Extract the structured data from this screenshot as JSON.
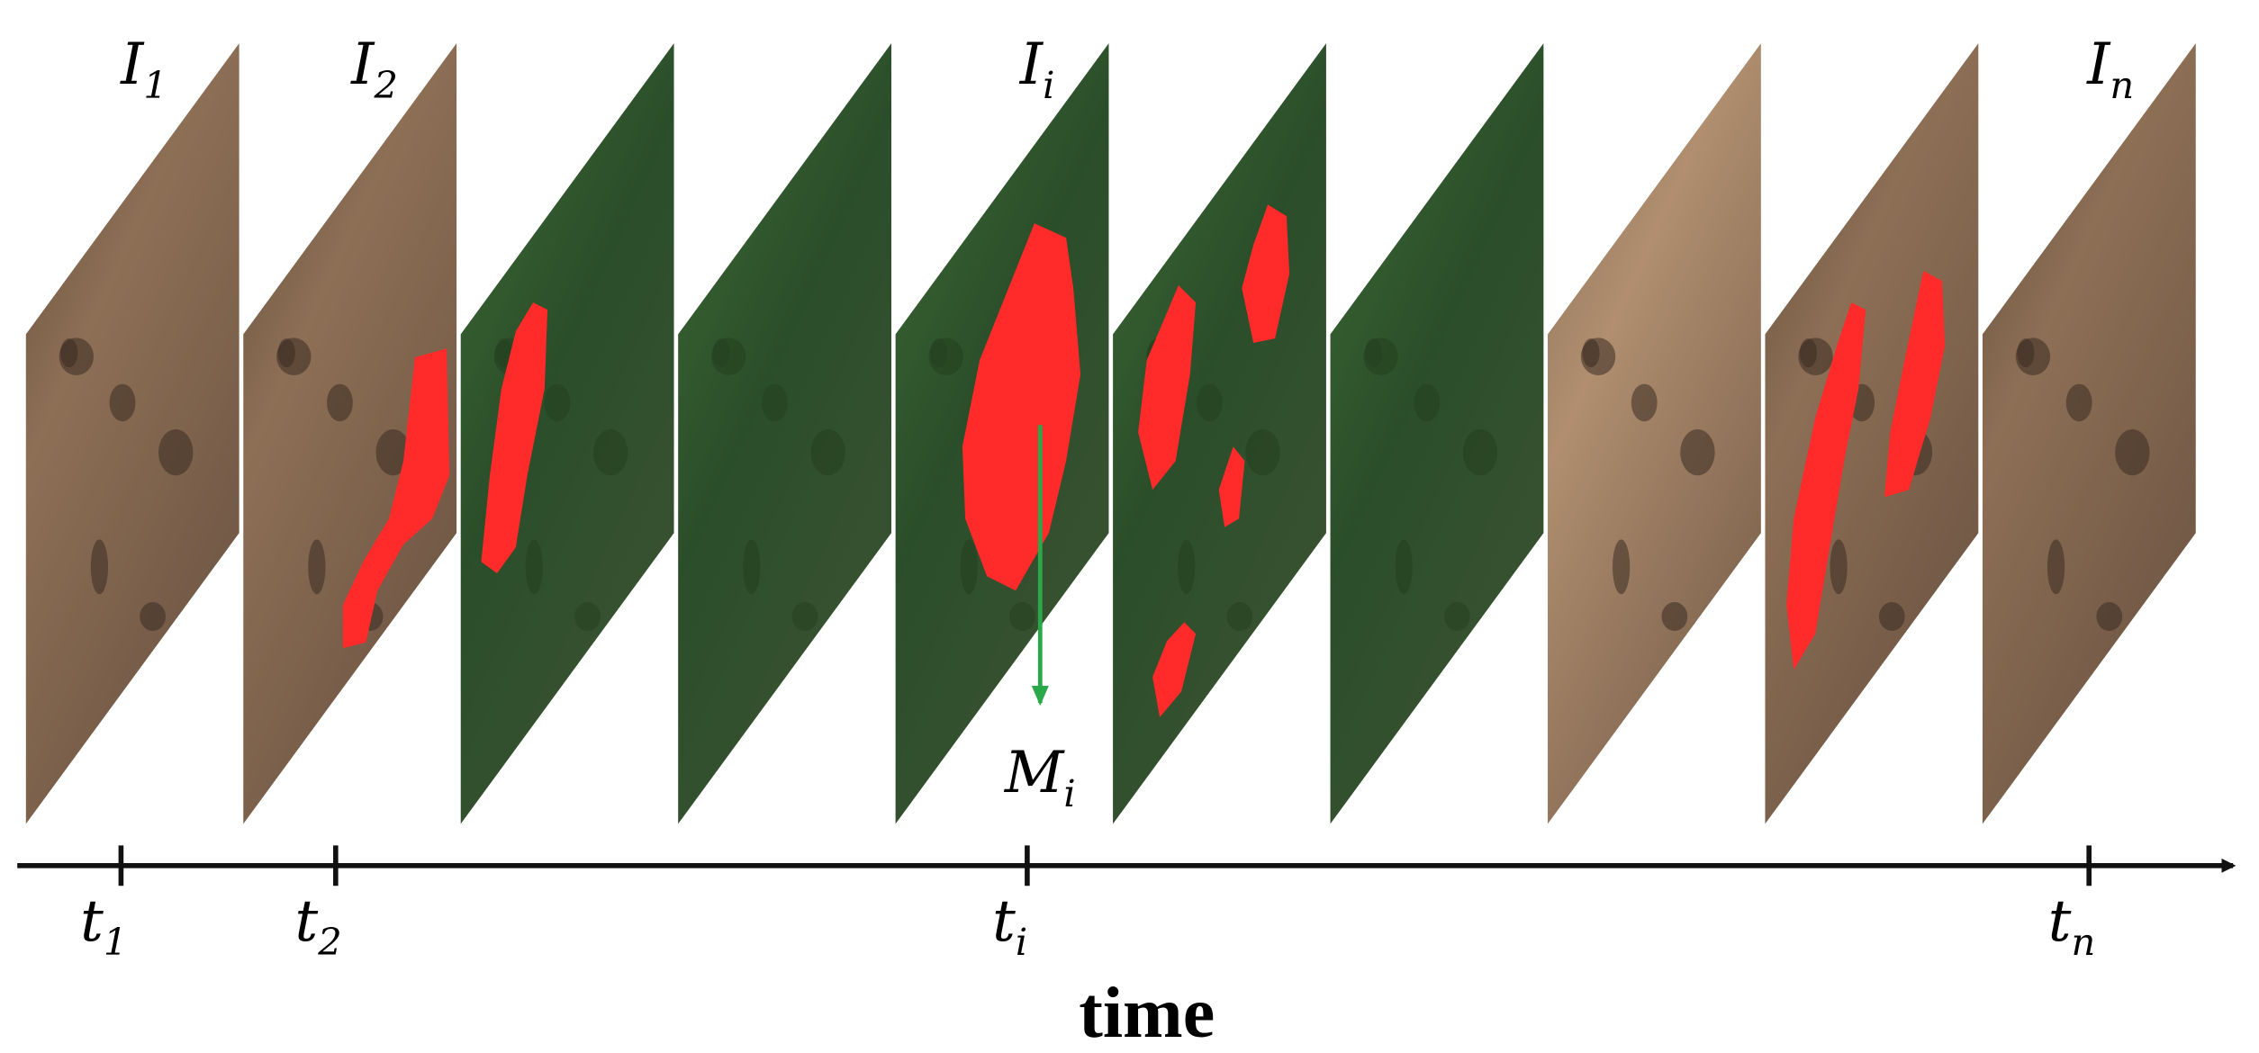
{
  "frame_labels": [
    {
      "base": "I",
      "sub": "1"
    },
    {
      "base": "I",
      "sub": "2"
    },
    {
      "base": "I",
      "sub": "i"
    },
    {
      "base": "I",
      "sub": "n"
    }
  ],
  "mask_label": {
    "base": "M",
    "sub": "i"
  },
  "time_ticks": [
    {
      "base": "t",
      "sub": "1"
    },
    {
      "base": "t",
      "sub": "2"
    },
    {
      "base": "t",
      "sub": "i"
    },
    {
      "base": "t",
      "sub": "n"
    }
  ],
  "axis_label": "time"
}
